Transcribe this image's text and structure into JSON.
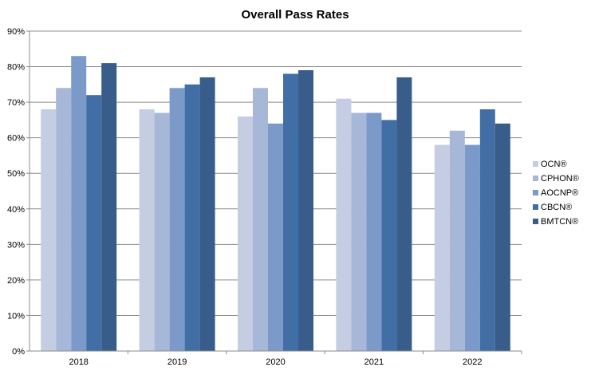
{
  "chart_data": {
    "type": "bar",
    "title": "Overall Pass Rates",
    "xlabel": "",
    "ylabel": "",
    "categories": [
      "2018",
      "2019",
      "2020",
      "2021",
      "2022"
    ],
    "y_ticks": [
      "0%",
      "10%",
      "20%",
      "30%",
      "40%",
      "50%",
      "60%",
      "70%",
      "80%",
      "90%"
    ],
    "ylim": [
      0,
      90
    ],
    "grid": true,
    "legend_position": "right",
    "series": [
      {
        "name": "OCN®",
        "color": "#c5cde3",
        "values": [
          68,
          68,
          66,
          71,
          58
        ]
      },
      {
        "name": "CPHON®",
        "color": "#a7b7d8",
        "values": [
          74,
          67,
          74,
          67,
          62
        ]
      },
      {
        "name": "AOCNP®",
        "color": "#7b9aca",
        "values": [
          83,
          74,
          64,
          67,
          58
        ]
      },
      {
        "name": "CBCN®",
        "color": "#426ea6",
        "values": [
          72,
          75,
          78,
          65,
          68
        ]
      },
      {
        "name": "BMTCN®",
        "color": "#385d8a",
        "values": [
          81,
          77,
          79,
          77,
          64
        ]
      }
    ]
  }
}
